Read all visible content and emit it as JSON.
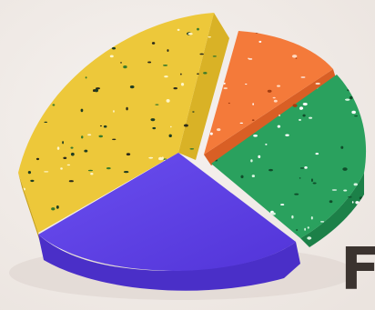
{
  "caption": {
    "letter": "F"
  }
}
